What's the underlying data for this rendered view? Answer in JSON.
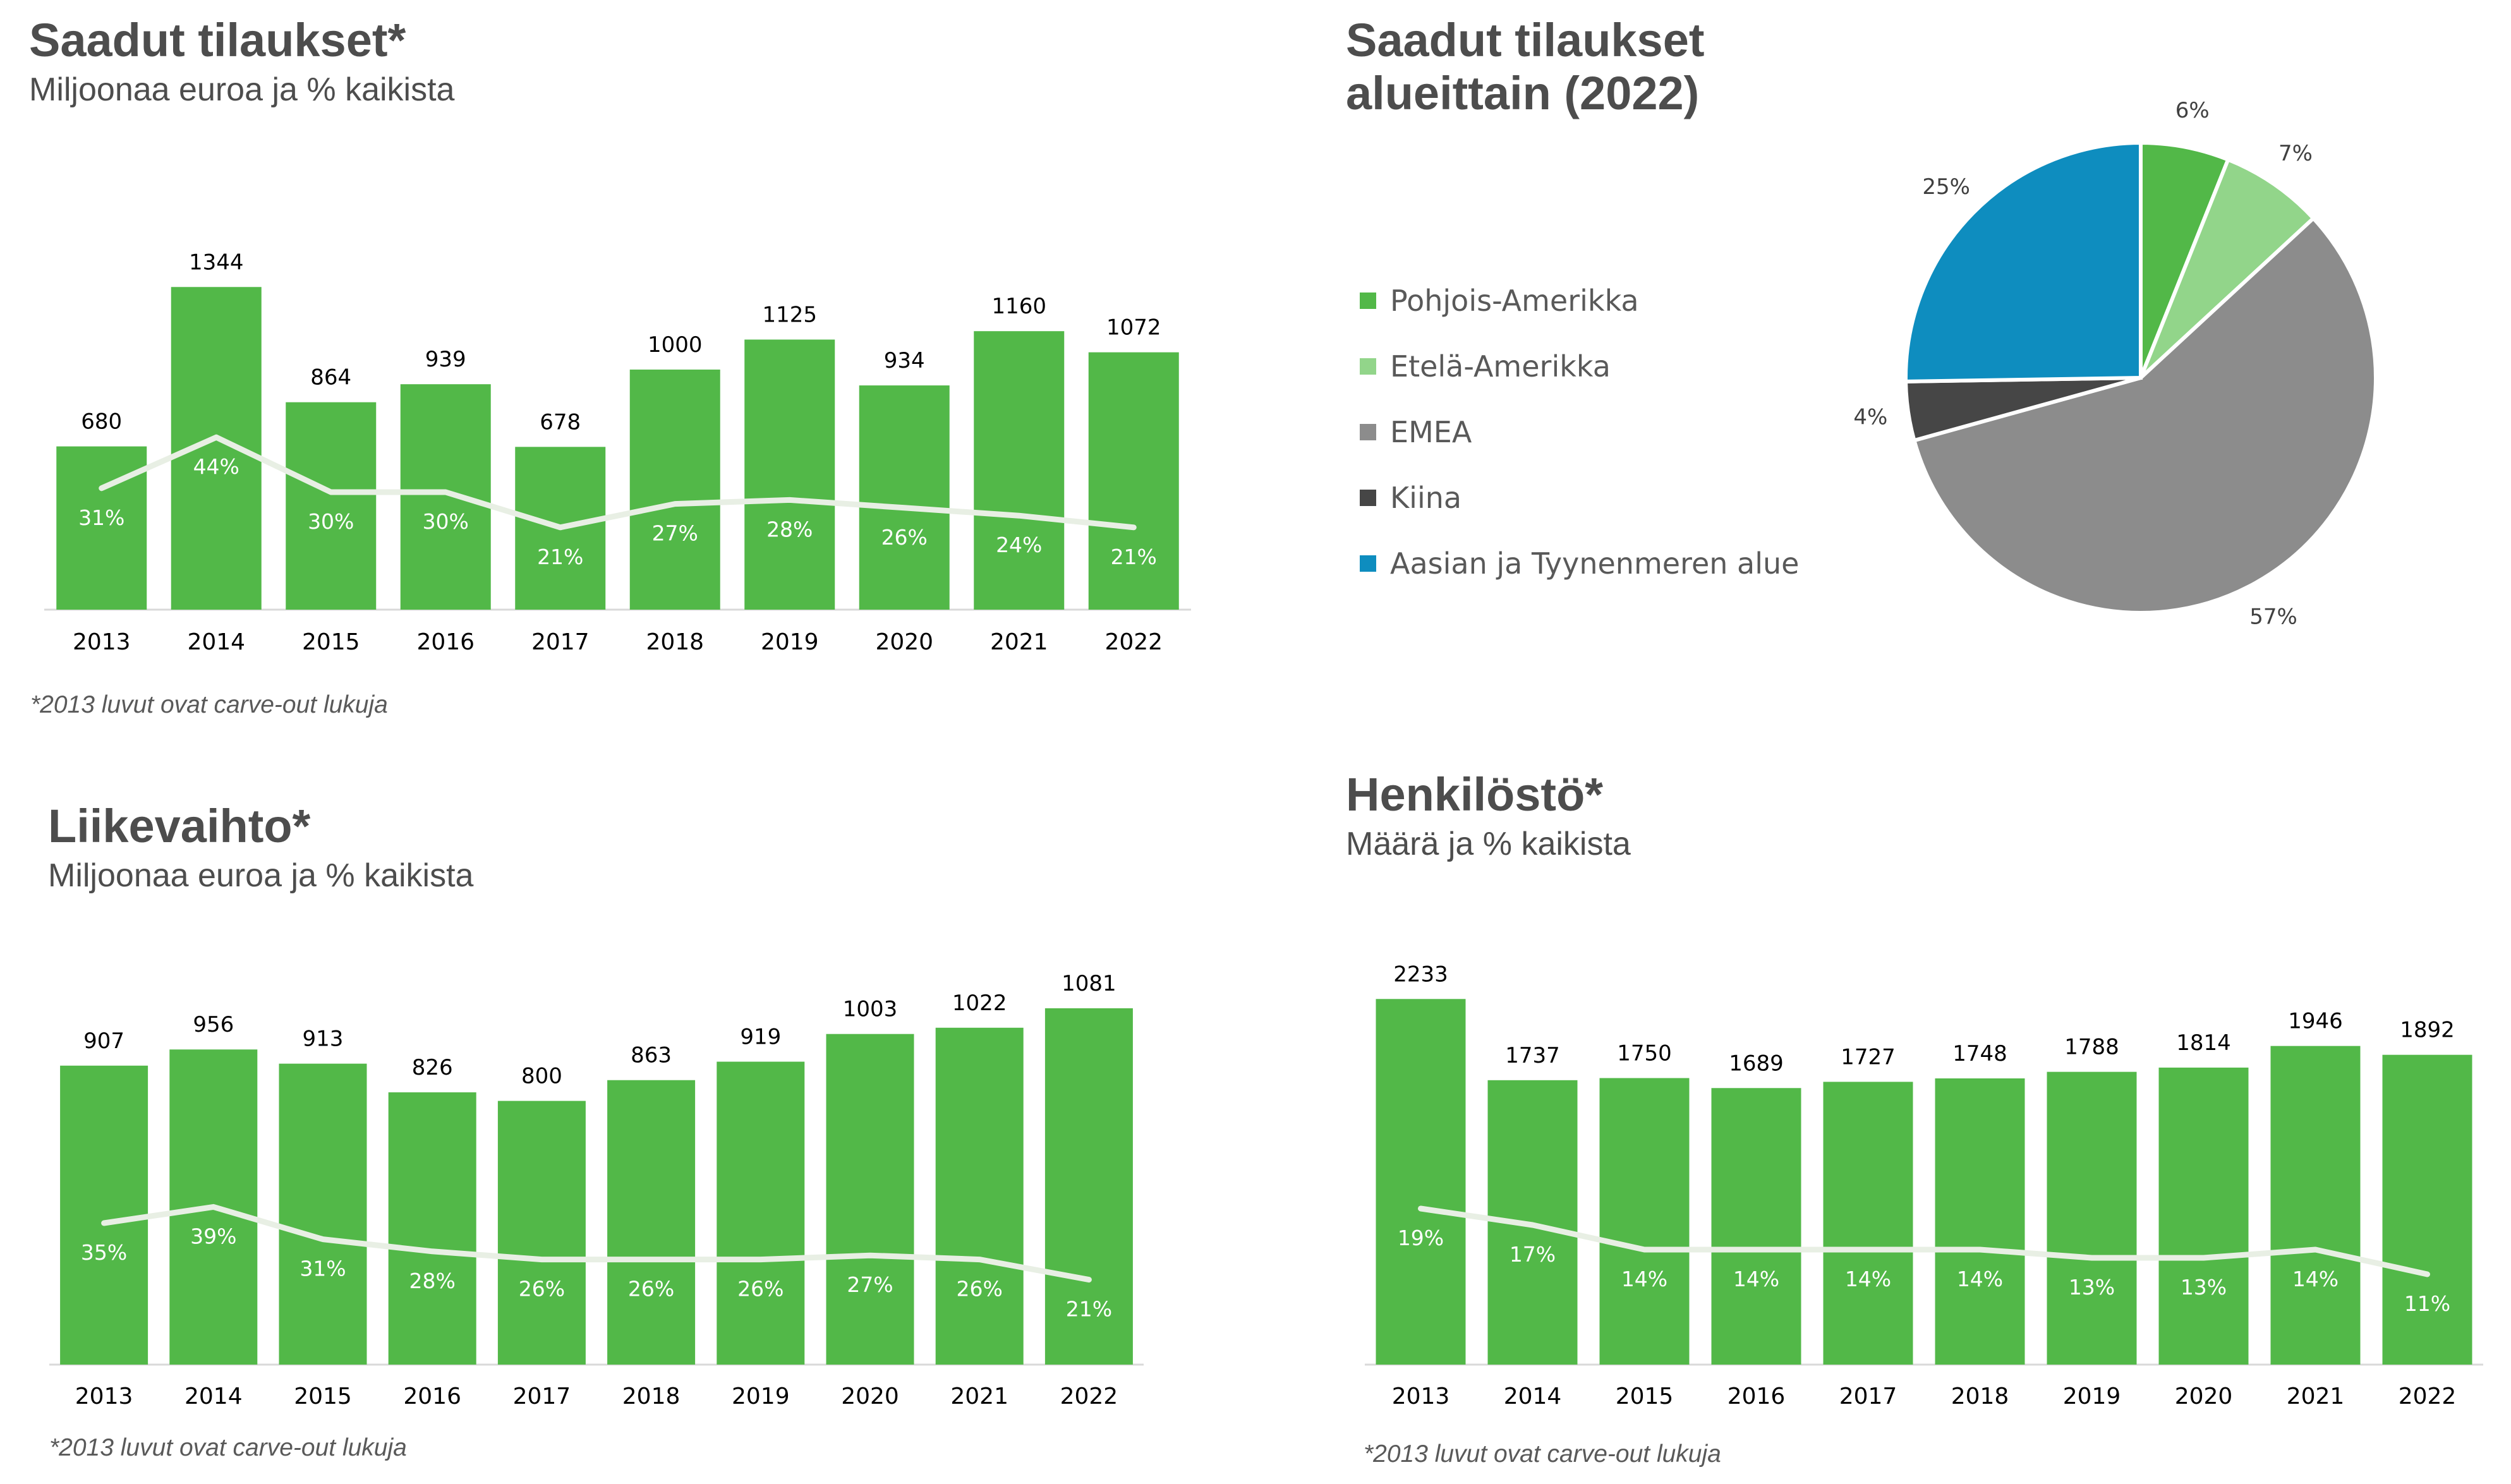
{
  "colors": {
    "bar": "#52b848",
    "line": "#e8efe4",
    "text": "#000000",
    "inner_label": "#ffffff",
    "axis": "#d9d9d9"
  },
  "orders": {
    "title": "Saadut tilaukset*",
    "subtitle": "Miljoonaa euroa ja % kaikista",
    "note": "*2013 luvut ovat carve-out lukuja"
  },
  "orders_region": {
    "title": "Saadut tilaukset\nalueittain (2022)"
  },
  "revenue": {
    "title": "Liikevaihto*",
    "subtitle": "Miljoonaa euroa ja % kaikista",
    "note": "*2013 luvut ovat carve-out lukuja"
  },
  "personnel": {
    "title": "Henkilöstö*",
    "subtitle": "Määrä ja % kaikista",
    "note": "*2013 luvut ovat carve-out lukuja"
  },
  "chart_data": [
    {
      "id": "orders",
      "type": "bar",
      "categories": [
        "2013",
        "2014",
        "2015",
        "2016",
        "2017",
        "2018",
        "2019",
        "2020",
        "2021",
        "2022"
      ],
      "values": [
        680,
        1344,
        864,
        939,
        678,
        1000,
        1125,
        934,
        1160,
        1072
      ],
      "line_values": [
        31,
        44,
        30,
        30,
        21,
        27,
        28,
        26,
        24,
        21
      ],
      "line_labels": [
        "31%",
        "44%",
        "30%",
        "30%",
        "21%",
        "27%",
        "28%",
        "26%",
        "24%",
        "21%"
      ],
      "ylim": [
        0,
        1500
      ],
      "line_ylim": [
        0,
        100
      ]
    },
    {
      "id": "revenue",
      "type": "bar",
      "categories": [
        "2013",
        "2014",
        "2015",
        "2016",
        "2017",
        "2018",
        "2019",
        "2020",
        "2021",
        "2022"
      ],
      "values": [
        907,
        956,
        913,
        826,
        800,
        863,
        919,
        1003,
        1022,
        1081
      ],
      "line_values": [
        35,
        39,
        31,
        28,
        26,
        26,
        26,
        27,
        26,
        21
      ],
      "line_labels": [
        "35%",
        "39%",
        "31%",
        "28%",
        "26%",
        "26%",
        "26%",
        "27%",
        "26%",
        "21%"
      ],
      "ylim": [
        0,
        1150
      ],
      "line_ylim": [
        0,
        100
      ]
    },
    {
      "id": "personnel",
      "type": "bar",
      "categories": [
        "2013",
        "2014",
        "2015",
        "2016",
        "2017",
        "2018",
        "2019",
        "2020",
        "2021",
        "2022"
      ],
      "values": [
        2233,
        1737,
        1750,
        1689,
        1727,
        1748,
        1788,
        1814,
        1946,
        1892
      ],
      "line_values": [
        19,
        17,
        14,
        14,
        14,
        14,
        13,
        13,
        14,
        11
      ],
      "line_labels": [
        "19%",
        "17%",
        "14%",
        "14%",
        "14%",
        "14%",
        "13%",
        "13%",
        "14%",
        "11%"
      ],
      "ylim": [
        0,
        2400
      ],
      "line_ylim": [
        0,
        100
      ]
    },
    {
      "id": "regions",
      "type": "pie",
      "labels": [
        "Pohjois-Amerikka",
        "Etelä-Amerikka",
        "EMEA",
        "Kiina",
        "Aasian ja Tyynenmeren alue"
      ],
      "values": [
        6,
        7,
        57,
        4,
        25
      ],
      "value_labels": [
        "6%",
        "7%",
        "57%",
        "4%",
        "25%"
      ],
      "colors": [
        "#52b848",
        "#92d58a",
        "#8c8c8c",
        "#464646",
        "#0e8dbf"
      ],
      "start_angle_deg": 0,
      "direction": "clockwise",
      "legend": "left"
    }
  ]
}
